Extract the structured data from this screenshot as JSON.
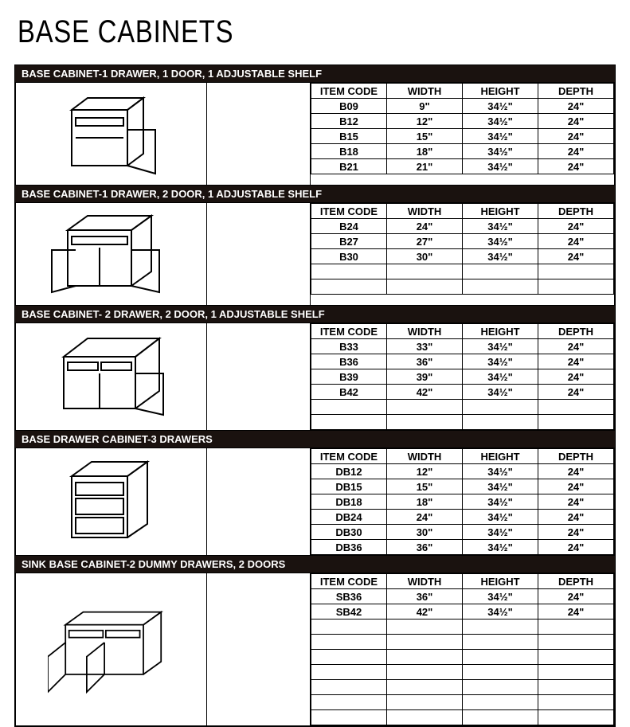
{
  "title": "BASE CABINETS",
  "headers": [
    "ITEM CODE",
    "WIDTH",
    "HEIGHT",
    "DEPTH"
  ],
  "sections": [
    {
      "title": "BASE CABINET-1 DRAWER, 1 DOOR, 1 ADJUSTABLE SHELF",
      "emptyRows": 0,
      "rows": [
        {
          "code": "B09",
          "width": "9\"",
          "height": "34½\"",
          "depth": "24\""
        },
        {
          "code": "B12",
          "width": "12\"",
          "height": "34½\"",
          "depth": "24\""
        },
        {
          "code": "B15",
          "width": "15\"",
          "height": "34½\"",
          "depth": "24\""
        },
        {
          "code": "B18",
          "width": "18\"",
          "height": "34½\"",
          "depth": "24\""
        },
        {
          "code": "B21",
          "width": "21\"",
          "height": "34½\"",
          "depth": "24\""
        }
      ]
    },
    {
      "title": "BASE CABINET-1 DRAWER, 2 DOOR, 1 ADJUSTABLE SHELF",
      "emptyRows": 2,
      "rows": [
        {
          "code": "B24",
          "width": "24\"",
          "height": "34½\"",
          "depth": "24\""
        },
        {
          "code": "B27",
          "width": "27\"",
          "height": "34½\"",
          "depth": "24\""
        },
        {
          "code": "B30",
          "width": "30\"",
          "height": "34½\"",
          "depth": "24\""
        }
      ]
    },
    {
      "title": "BASE CABINET- 2 DRAWER, 2 DOOR, 1 ADJUSTABLE SHELF",
      "emptyRows": 2,
      "rows": [
        {
          "code": "B33",
          "width": "33\"",
          "height": "34½\"",
          "depth": "24\""
        },
        {
          "code": "B36",
          "width": "36\"",
          "height": "34½\"",
          "depth": "24\""
        },
        {
          "code": "B39",
          "width": "39\"",
          "height": "34½\"",
          "depth": "24\""
        },
        {
          "code": "B42",
          "width": "42\"",
          "height": "34½\"",
          "depth": "24\""
        }
      ]
    },
    {
      "title": "BASE DRAWER CABINET-3 DRAWERS",
      "emptyRows": 0,
      "rows": [
        {
          "code": "DB12",
          "width": "12\"",
          "height": "34½\"",
          "depth": "24\""
        },
        {
          "code": "DB15",
          "width": "15\"",
          "height": "34½\"",
          "depth": "24\""
        },
        {
          "code": "DB18",
          "width": "18\"",
          "height": "34½\"",
          "depth": "24\""
        },
        {
          "code": "DB24",
          "width": "24\"",
          "height": "34½\"",
          "depth": "24\""
        },
        {
          "code": "DB30",
          "width": "30\"",
          "height": "34½\"",
          "depth": "24\""
        },
        {
          "code": "DB36",
          "width": "36\"",
          "height": "34½\"",
          "depth": "24\""
        }
      ]
    },
    {
      "title": "SINK BASE CABINET-2 DUMMY DRAWERS, 2 DOORS",
      "emptyRows": 7,
      "rows": [
        {
          "code": "SB36",
          "width": "36\"",
          "height": "34½\"",
          "depth": "24\""
        },
        {
          "code": "SB42",
          "width": "42\"",
          "height": "34½\"",
          "depth": "24\""
        }
      ]
    }
  ]
}
